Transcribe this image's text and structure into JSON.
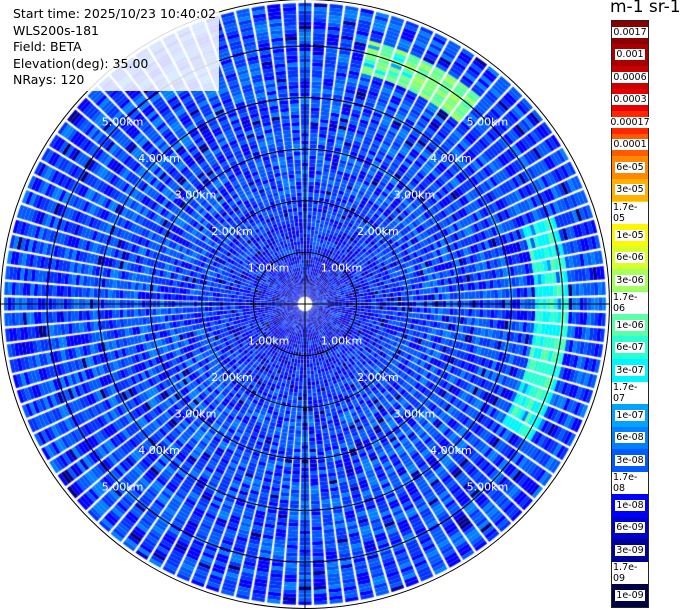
{
  "info": {
    "start_time": "Start time: 2025/10/23 10:40:02",
    "instrument": "WLS200s-181",
    "field": "Field: BETA",
    "elevation": "Elevation(deg): 35.00",
    "nrays": "NRays: 120"
  },
  "colorbar": {
    "unit_label": "m-1 sr-1",
    "ticks": [
      "0.0017",
      "0.001",
      "0.0006",
      "0.0003",
      "0.00017",
      "0.0001",
      "6e-05",
      "3e-05",
      "1.7e-05",
      "1e-05",
      "6e-06",
      "3e-06",
      "1.7e-06",
      "1e-06",
      "6e-07",
      "3e-07",
      "1.7e-07",
      "1e-07",
      "6e-08",
      "3e-08",
      "1.7e-08",
      "1e-08",
      "6e-09",
      "3e-09",
      "1.7e-09",
      "1e-09"
    ],
    "colors": [
      "#8b0000",
      "#a80000",
      "#c80000",
      "#e60000",
      "#ff2600",
      "#ff5a00",
      "#ff8800",
      "#ffb000",
      "#ffd900",
      "#fff700",
      "#d9ff2a",
      "#a6ff5a",
      "#80ff80",
      "#5affa6",
      "#2affd4",
      "#00f5ff",
      "#00ccff",
      "#00a3ff",
      "#0080ff",
      "#005aff",
      "#0033ff",
      "#0000ff",
      "#0000cc",
      "#000099",
      "#000070",
      "#000044"
    ]
  },
  "range_rings": {
    "labels": [
      "1.00km",
      "2.00km",
      "3.00km",
      "4.00km",
      "5.00km"
    ]
  },
  "chart_data": {
    "type": "heatmap",
    "projection": "polar (PPI)",
    "field": "BETA",
    "units": "m-1 sr-1",
    "elevation_deg": 35.0,
    "nrays": 120,
    "range_max_km": 5.9,
    "range_ring_km": [
      1,
      2,
      3,
      4,
      5
    ],
    "colorbar_range": [
      1e-09,
      0.0017
    ],
    "color_scale": "log",
    "background_level": 3e-08,
    "near_range_level": 1e-08,
    "features": [
      {
        "description": "enhanced backscatter arc",
        "azimuth_deg_from_north": [
          15,
          40
        ],
        "range_km": [
          4.6,
          5.2
        ],
        "level": 1.7e-06
      },
      {
        "description": "enhanced backscatter arc",
        "azimuth_deg_from_north": [
          70,
          120
        ],
        "range_km": [
          4.4,
          5.1
        ],
        "level": 6e-07
      }
    ]
  }
}
